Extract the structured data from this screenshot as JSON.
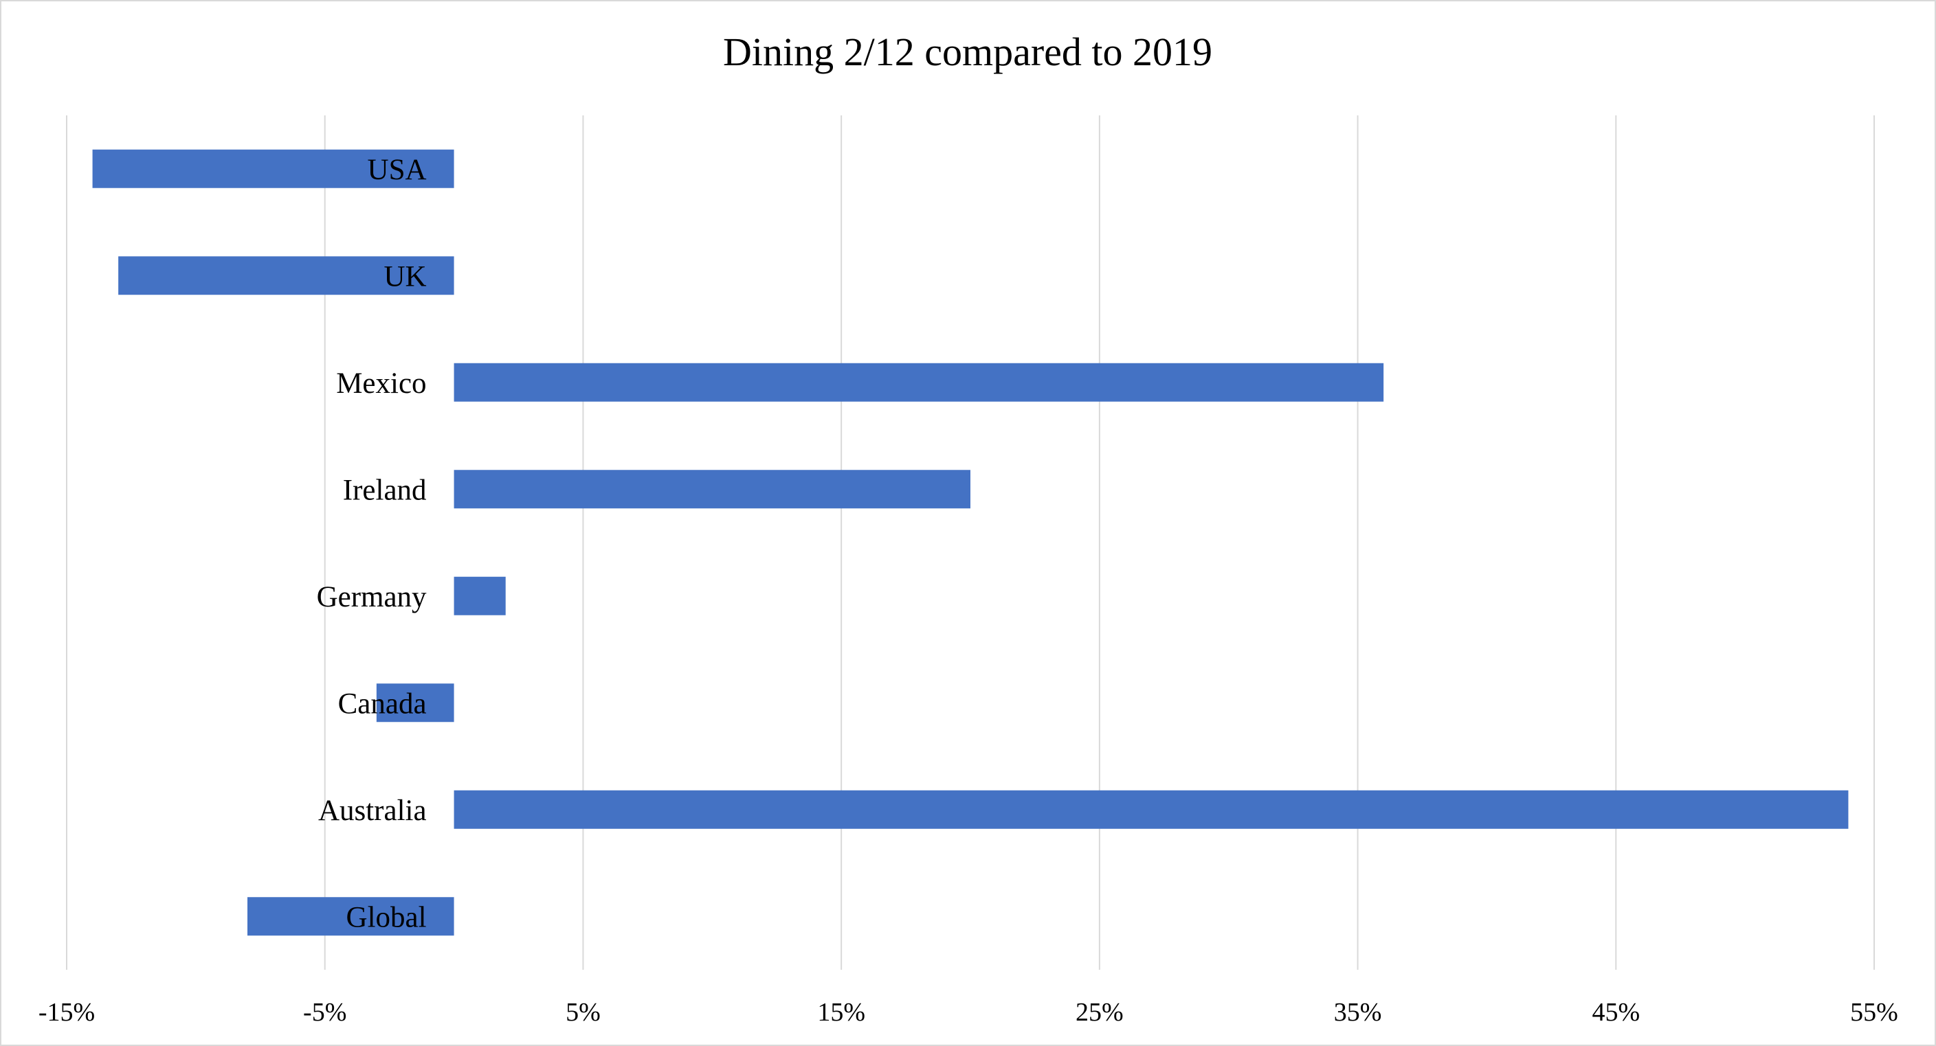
{
  "chart_data": {
    "type": "bar",
    "orientation": "horizontal",
    "title": "Dining 2/12 compared to 2019",
    "xlabel": "",
    "ylabel": "",
    "categories": [
      "USA",
      "UK",
      "Mexico",
      "Ireland",
      "Germany",
      "Canada",
      "Australia",
      "Global"
    ],
    "values": [
      -14,
      -13,
      36,
      20,
      2,
      -3,
      54,
      -8
    ],
    "value_unit": "%",
    "xlim": [
      -15,
      55
    ],
    "x_ticks": [
      -15,
      -5,
      5,
      15,
      25,
      35,
      45,
      55
    ],
    "x_tick_labels": [
      "-15%",
      "-5%",
      "5%",
      "15%",
      "25%",
      "35%",
      "45%",
      "55%"
    ],
    "grid": "vertical",
    "legend": "none",
    "bar_color": "#4472c4"
  }
}
